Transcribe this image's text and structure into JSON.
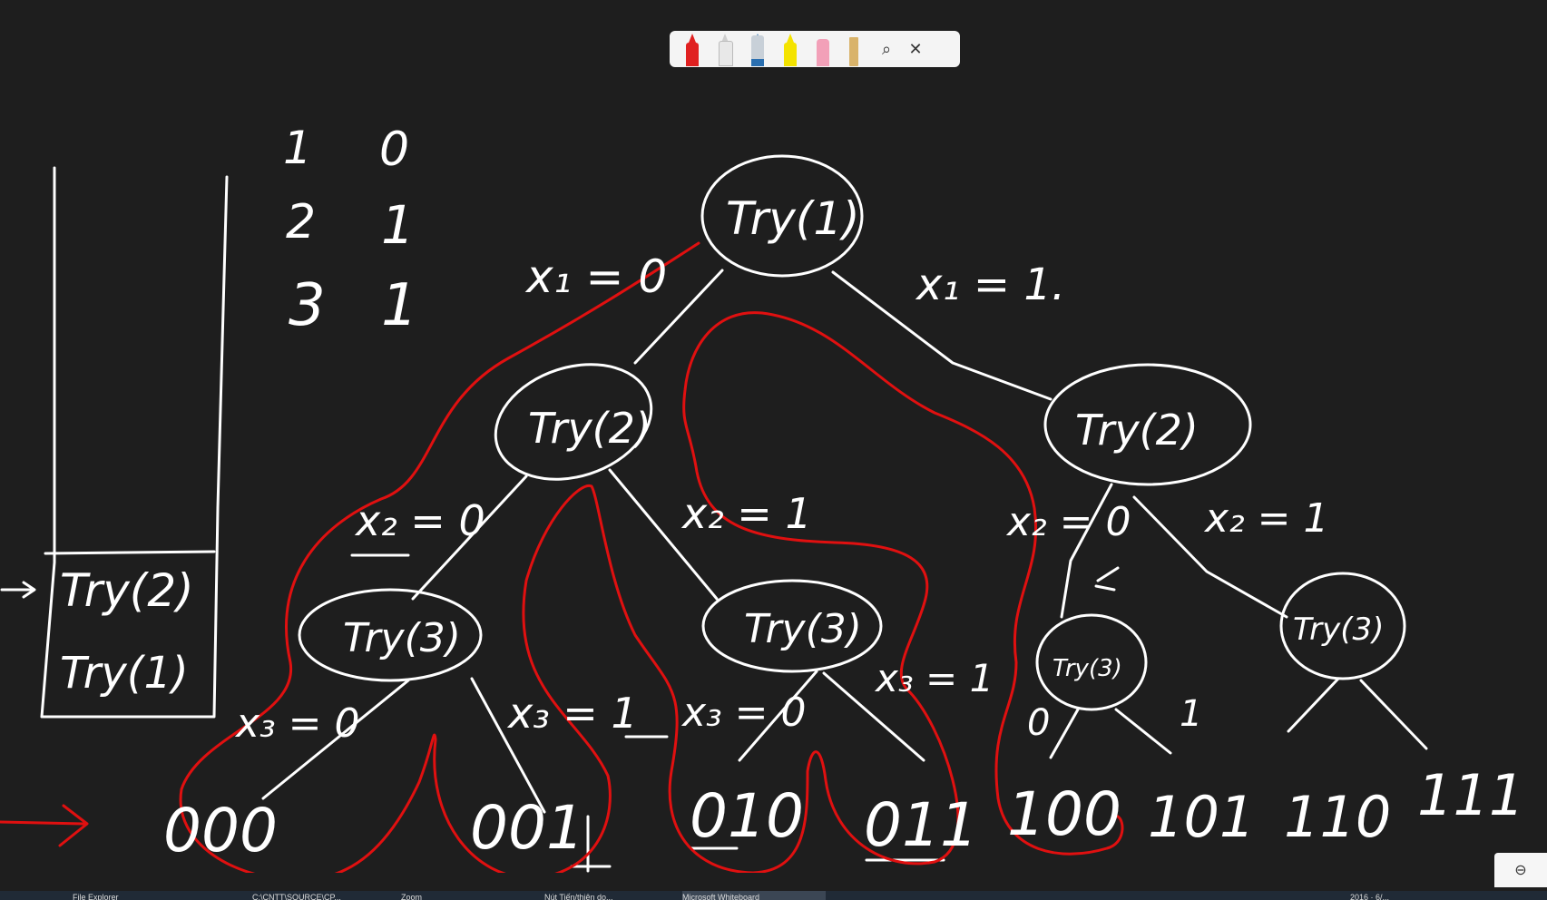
{
  "toolbar": {
    "tools": [
      {
        "name": "red-pen",
        "color": "#e02020"
      },
      {
        "name": "white-pen",
        "color": "#f0f0f0"
      },
      {
        "name": "blue-pen",
        "color": "#2a6fb0"
      },
      {
        "name": "highlighter",
        "color": "#f4e300"
      },
      {
        "name": "eraser",
        "color": "#f2a0b8"
      },
      {
        "name": "ruler",
        "color": "#d9b36a"
      }
    ],
    "lasso_icon": "lasso-icon",
    "close_icon": "close-icon",
    "close_glyph": "✕",
    "lasso_glyph": "⌕"
  },
  "stack": {
    "items": [
      "Try(2)",
      "Try(1)"
    ],
    "pointer": "→"
  },
  "table": {
    "rows": [
      [
        "1",
        "0"
      ],
      [
        "2",
        "1"
      ],
      [
        "3",
        "1"
      ]
    ]
  },
  "tree": {
    "nodes": {
      "root": "Try(1)",
      "left": "Try(2)",
      "right": "Try(2)",
      "ll": "Try(3)",
      "lr": "Try(3)",
      "rl": "Try(3)",
      "rr": "Try(3)"
    },
    "edges": {
      "x1_0": "x₁ = 0",
      "x1_1": "x₁ = 1.",
      "x2_0_left": "x₂ = 0",
      "x2_1_left": "x₂ = 1",
      "x2_0_right": "x₂ = 0",
      "x2_1_right": "x₂ = 1",
      "x3_0_a": "x₃ = 0",
      "x3_1_a": "x₃ = 1",
      "x3_0_b": "x₃ = 0",
      "x3_1_b": "x₃ = 1",
      "c0": "0",
      "c1": "1"
    },
    "leaves": [
      "000",
      "001",
      "010",
      "011",
      "100",
      "101",
      "110",
      "111"
    ]
  },
  "zoom": {
    "icon": "zoom-icon",
    "glyph": "⊖"
  },
  "taskbar": {
    "items": [
      "File Explorer",
      "C:\\CNTT\\SOURCE\\CP...",
      "Zoom",
      "Nút Tiến/thiện do...",
      "Microsoft Whiteboard"
    ],
    "tray": "2016 · 6/..."
  }
}
